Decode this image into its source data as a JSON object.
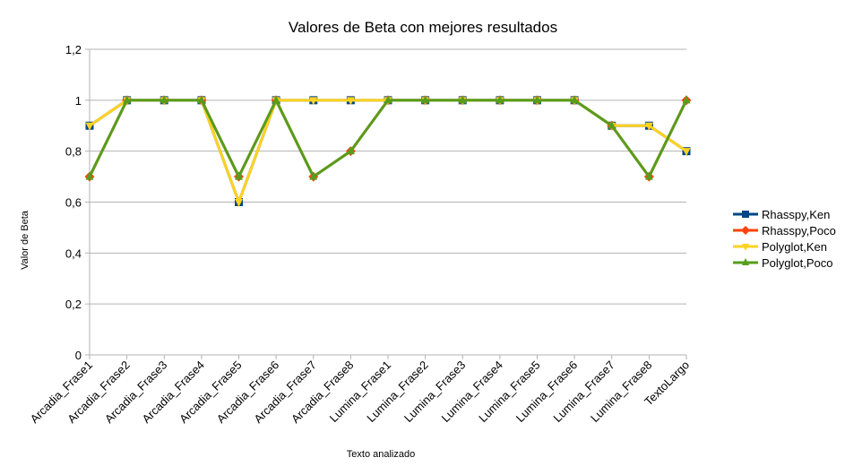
{
  "chart_data": {
    "type": "line",
    "title": "Valores de Beta con mejores resultados",
    "xlabel": "Texto analizado",
    "ylabel": "Valor de Beta",
    "ylim": [
      0,
      1.2
    ],
    "yticks": [
      "0",
      "0,2",
      "0,4",
      "0,6",
      "0,8",
      "1",
      "1,2"
    ],
    "grid": true,
    "legend_position": "right",
    "categories": [
      "Arcadia_Frase1",
      "Arcadia_Frase2",
      "Arcadia_Frase3",
      "Arcadia_Frase4",
      "Arcadia_Frase5",
      "Arcadia_Frase6",
      "Arcadia_Frase7",
      "Arcadia_Frase8",
      "Lumina_Frase1",
      "Lumina_Frase2",
      "Lumina_Frase3",
      "Lumina_Frase4",
      "Lumina_Frase5",
      "Lumina_Frase6",
      "Lumina_Frase7",
      "Lumina_Frase8",
      "TextoLargo"
    ],
    "series": [
      {
        "name": "Rhasspy,Ken",
        "color": "#004586",
        "marker": "square",
        "values": [
          0.9,
          1,
          1,
          1,
          0.6,
          1,
          1,
          1,
          1,
          1,
          1,
          1,
          1,
          1,
          0.9,
          0.9,
          0.8
        ]
      },
      {
        "name": "Rhasspy,Poco",
        "color": "#ff420e",
        "marker": "diamond",
        "values": [
          0.7,
          1,
          1,
          1,
          0.7,
          1,
          0.7,
          0.8,
          1,
          1,
          1,
          1,
          1,
          1,
          0.9,
          0.7,
          1
        ]
      },
      {
        "name": "Polyglot,Ken",
        "color": "#ffd320",
        "marker": "triangle-down",
        "values": [
          0.9,
          1,
          1,
          1,
          0.6,
          1,
          1,
          1,
          1,
          1,
          1,
          1,
          1,
          1,
          0.9,
          0.9,
          0.8
        ]
      },
      {
        "name": "Polyglot,Poco",
        "color": "#579d1c",
        "marker": "triangle-up",
        "values": [
          0.7,
          1,
          1,
          1,
          0.7,
          1,
          0.7,
          0.8,
          1,
          1,
          1,
          1,
          1,
          1,
          0.9,
          0.7,
          1
        ]
      }
    ]
  }
}
